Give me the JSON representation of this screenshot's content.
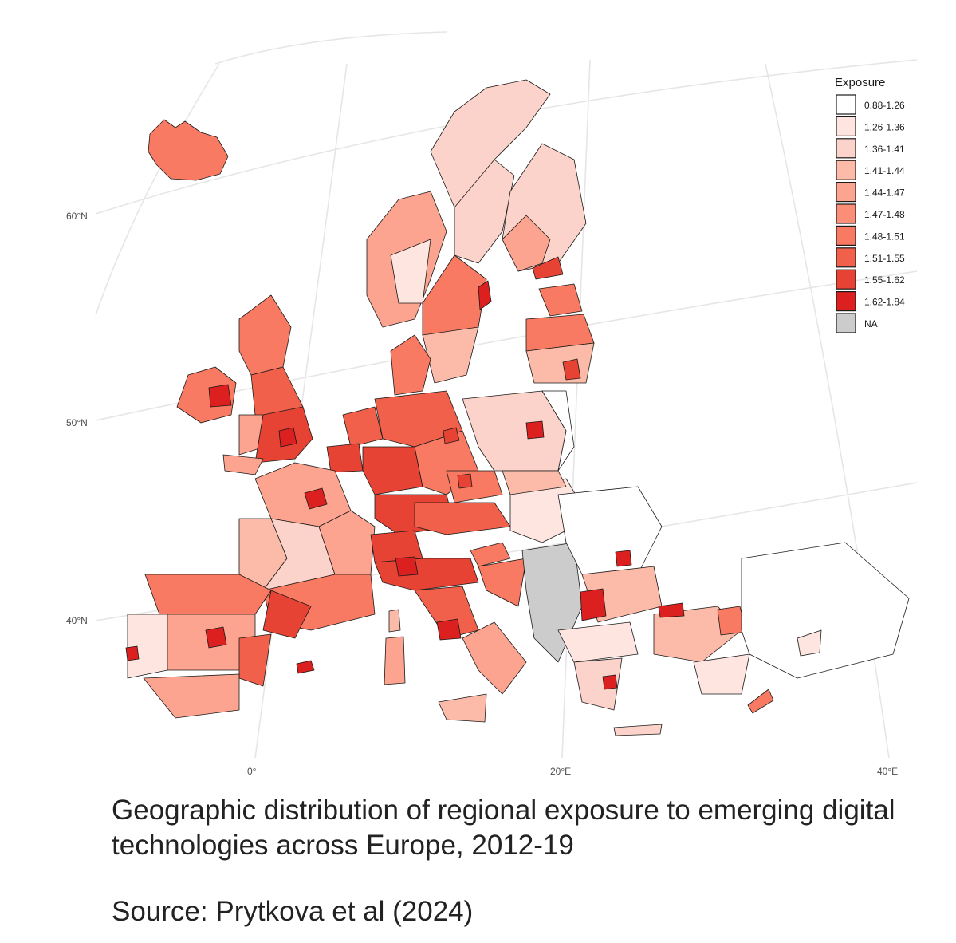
{
  "legend": {
    "title": "Exposure",
    "items": [
      {
        "label": "0.88-1.26",
        "color": "#ffffff"
      },
      {
        "label": "1.26-1.36",
        "color": "#fee5e0"
      },
      {
        "label": "1.36-1.41",
        "color": "#fcd3ca"
      },
      {
        "label": "1.41-1.44",
        "color": "#fcbba8"
      },
      {
        "label": "1.44-1.47",
        "color": "#fca48f"
      },
      {
        "label": "1.47-1.48",
        "color": "#fb8e77"
      },
      {
        "label": "1.48-1.51",
        "color": "#f87a62"
      },
      {
        "label": "1.51-1.55",
        "color": "#f0604a"
      },
      {
        "label": "1.55-1.62",
        "color": "#e64335"
      },
      {
        "label": "1.62-1.84",
        "color": "#dc1f1f"
      },
      {
        "label": "NA",
        "color": "#cccccc"
      }
    ]
  },
  "axes": {
    "lat_labels": [
      "60°N",
      "50°N",
      "40°N"
    ],
    "lon_labels": [
      "0°",
      "20°E",
      "40°E"
    ]
  },
  "caption": {
    "title": "Geographic distribution of regional exposure to emerging digital technologies across Europe, 2012-19",
    "source": "Source: Prytkova et al (2024)"
  }
}
